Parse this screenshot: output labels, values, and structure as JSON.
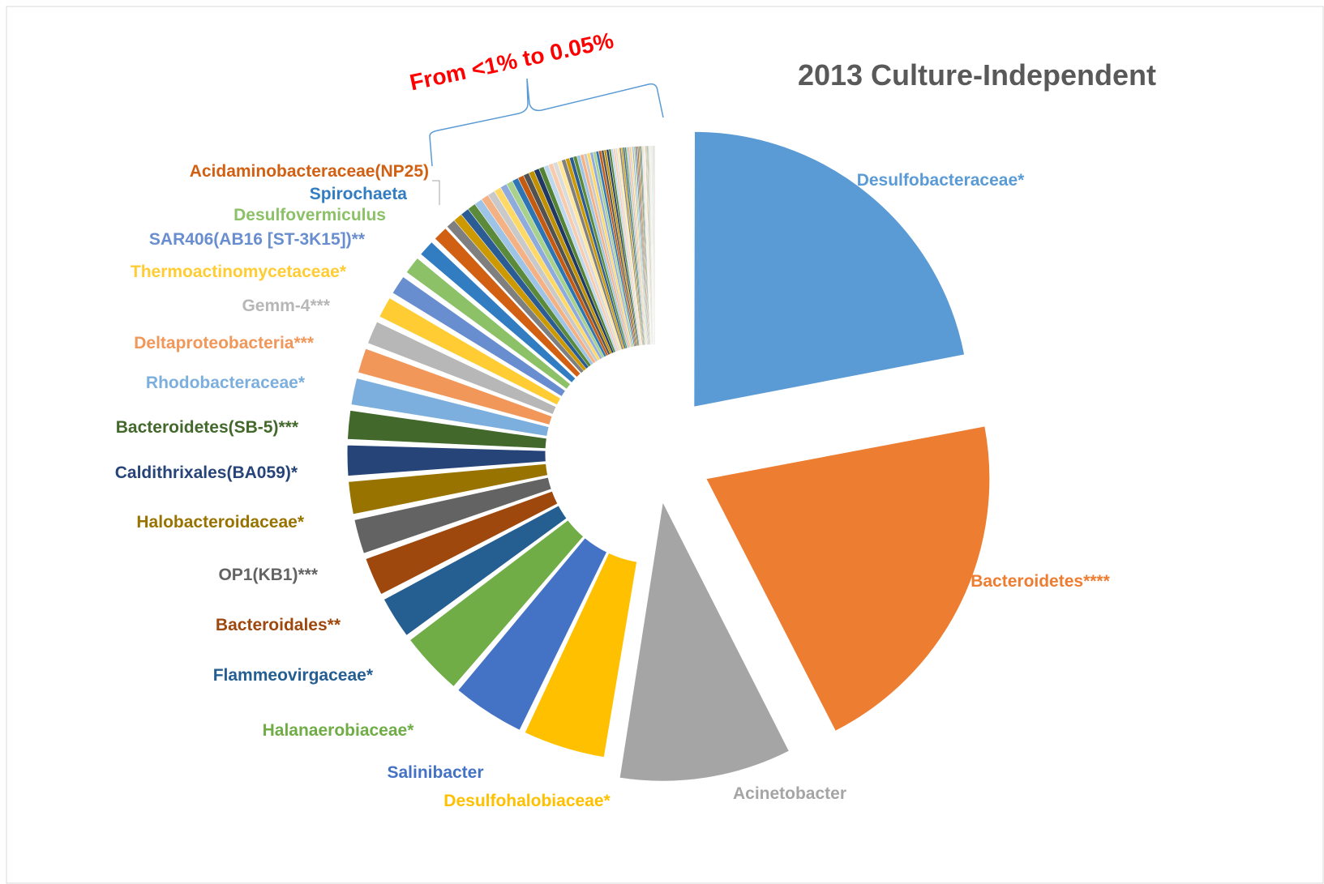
{
  "chart_data": {
    "type": "pie",
    "title": "2013 Culture-Independent",
    "annotation": "From <1% to 0.05%",
    "named_slices": [
      {
        "label": "Desulfobacteraceae*",
        "value": 22.0,
        "color": "#5b9bd5"
      },
      {
        "label": "Bacteroidetes****",
        "value": 20.5,
        "color": "#ed7d31"
      },
      {
        "label": "Acinetobacter",
        "value": 10.0,
        "color": "#a5a5a5"
      },
      {
        "label": "Desulfohalobiaceae*",
        "value": 4.6,
        "color": "#ffc000"
      },
      {
        "label": "Salinibacter",
        "value": 4.1,
        "color": "#4472c4"
      },
      {
        "label": "Halanaerobiaceae*",
        "value": 3.6,
        "color": "#70ad47"
      },
      {
        "label": "Flammeovirgaceae*",
        "value": 2.5,
        "color": "#255e91"
      },
      {
        "label": "Bacteroidales**",
        "value": 2.3,
        "color": "#9e480e"
      },
      {
        "label": "OP1(KB1)***",
        "value": 2.1,
        "color": "#636363"
      },
      {
        "label": "Halobacteroidaceae*",
        "value": 2.0,
        "color": "#997300"
      },
      {
        "label": "Caldithrixales(BA059)*",
        "value": 1.9,
        "color": "#264478"
      },
      {
        "label": "Bacteroidetes(SB-5)***",
        "value": 1.8,
        "color": "#43682b"
      },
      {
        "label": "Rhodobacteraceae*",
        "value": 1.7,
        "color": "#7cafdd"
      },
      {
        "label": "Deltaproteobacteria***",
        "value": 1.6,
        "color": "#f1975a"
      },
      {
        "label": "Gemm-4***",
        "value": 1.5,
        "color": "#b7b7b7"
      },
      {
        "label": "Thermoactinomycetaceae*",
        "value": 1.4,
        "color": "#ffcd33"
      },
      {
        "label": "SAR406(AB16 [ST-3K15])**",
        "value": 1.3,
        "color": "#698ed0"
      },
      {
        "label": "Desulfovermiculus",
        "value": 1.2,
        "color": "#8cc168"
      },
      {
        "label": "Spirochaeta",
        "value": 1.1,
        "color": "#327dc2"
      },
      {
        "label": "Acidaminobacteraceae(NP25)",
        "value": 1.0,
        "color": "#d26012"
      }
    ],
    "minor_slices": {
      "value_range_percent": [
        1.0,
        0.05
      ],
      "count": 75,
      "total": 11.8,
      "palette": [
        "#7f7f7f",
        "#cc9a00",
        "#2c5c94",
        "#5a8a3a",
        "#9dc3e6",
        "#f4b183",
        "#c9c9c9",
        "#ffd966",
        "#8faadc",
        "#a9d18e",
        "#2e75b6",
        "#c55a11",
        "#525252",
        "#bf9000",
        "#1f3864",
        "#548235",
        "#bdd7ee",
        "#f8cbad",
        "#dbdbdb",
        "#ffe699"
      ]
    }
  }
}
